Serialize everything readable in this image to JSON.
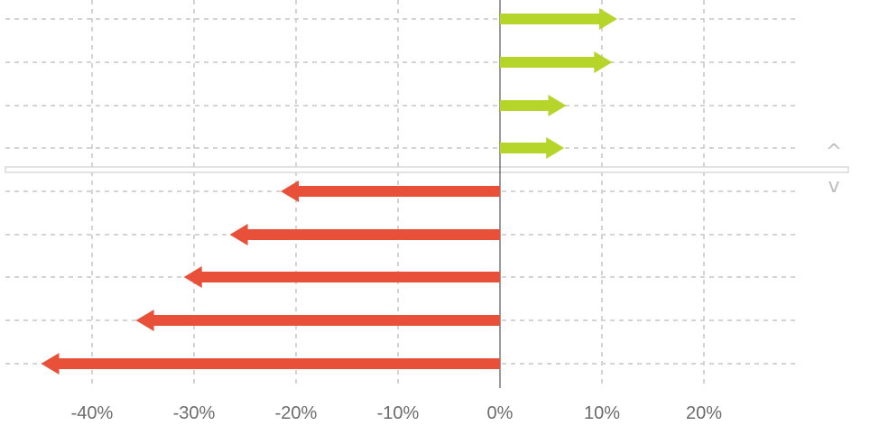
{
  "chart_data": {
    "type": "bar",
    "orientation": "horizontal",
    "mark_style": "arrow",
    "x_axis": {
      "min": -45,
      "max": 29,
      "ticks": [
        -40,
        -30,
        -20,
        -10,
        0,
        10,
        20
      ],
      "tick_labels": [
        "-40%",
        "-30%",
        "-20%",
        "-10%",
        "0%",
        "10%",
        "20%"
      ]
    },
    "grid": true,
    "series": [
      {
        "values": [
          11.5,
          11,
          6.5,
          6.3,
          -21.5,
          -26.5,
          -31,
          -35.7,
          -45
        ]
      }
    ],
    "colors": {
      "positive": "#b5d52a",
      "negative": "#e8503a",
      "grid": "#d4d4d4",
      "zero_line": "#333333",
      "divider": "#d9d9d9"
    }
  },
  "controls": {
    "scroll_up_icon": "chevron-up-icon",
    "scroll_down_icon": "chevron-down-icon",
    "scroll_up_glyph": "^",
    "scroll_down_glyph": "v"
  }
}
